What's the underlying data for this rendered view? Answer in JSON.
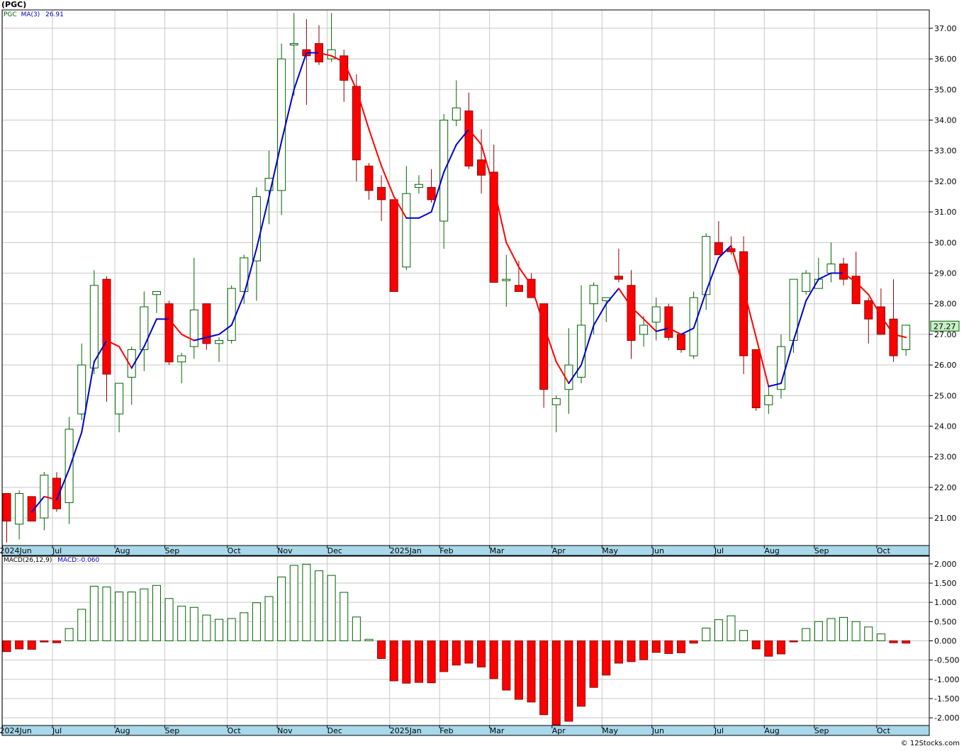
{
  "title": "(PGC)",
  "legend_price": {
    "ticker": "PGC",
    "ma_label": "MA(3)",
    "ma_value": "26.91"
  },
  "legend_macd": {
    "macd_label": "MACD(26,12,9)",
    "macd_value": "MACD:-0.060"
  },
  "last_price_tag": "27.27",
  "copyright": "© 12Stocks.com",
  "colors": {
    "up": "#006400",
    "down": "#ff0000",
    "ma_up": "#0000cc",
    "ma_down": "#ff0000",
    "grid": "#c8c8c8",
    "axis_band": "#a8d8ea",
    "tag_bg": "#c8f0c8"
  },
  "chart_data": [
    {
      "type": "candlestick",
      "name": "price",
      "y_ticks": [
        "21.00",
        "22.00",
        "23.00",
        "24.00",
        "25.00",
        "26.00",
        "27.00",
        "28.00",
        "29.00",
        "30.00",
        "31.00",
        "32.00",
        "33.00",
        "34.00",
        "35.00",
        "36.00",
        "37.00"
      ],
      "ylim": [
        20.1,
        37.6
      ],
      "x_labels": [
        {
          "label": "2024Jun",
          "i": 0
        },
        {
          "label": "Jul",
          "i": 4
        },
        {
          "label": "Aug",
          "i": 9
        },
        {
          "label": "Sep",
          "i": 13
        },
        {
          "label": "Oct",
          "i": 18
        },
        {
          "label": "Nov",
          "i": 22
        },
        {
          "label": "Dec",
          "i": 26
        },
        {
          "label": "2025Jan",
          "i": 31
        },
        {
          "label": "Feb",
          "i": 35
        },
        {
          "label": "Mar",
          "i": 39
        },
        {
          "label": "Apr",
          "i": 44
        },
        {
          "label": "May",
          "i": 48
        },
        {
          "label": "Jun",
          "i": 52
        },
        {
          "label": "Jul",
          "i": 57
        },
        {
          "label": "Aug",
          "i": 61
        },
        {
          "label": "Sep",
          "i": 65
        },
        {
          "label": "Oct",
          "i": 70
        }
      ],
      "candles": [
        [
          21.8,
          20.2,
          21.8,
          20.9
        ],
        [
          20.8,
          20.3,
          21.9,
          21.8
        ],
        [
          21.7,
          20.9,
          21.7,
          20.9
        ],
        [
          21.0,
          20.6,
          22.5,
          22.4
        ],
        [
          22.3,
          21.2,
          22.5,
          21.3
        ],
        [
          21.5,
          20.8,
          24.3,
          23.9
        ],
        [
          24.4,
          24.2,
          26.7,
          26.0
        ],
        [
          25.9,
          25.7,
          29.1,
          28.6
        ],
        [
          28.8,
          24.8,
          28.9,
          25.7
        ],
        [
          24.4,
          23.8,
          25.4,
          25.4
        ],
        [
          25.6,
          24.7,
          26.6,
          26.5
        ],
        [
          26.5,
          25.8,
          28.4,
          27.9
        ],
        [
          28.3,
          27.7,
          28.4,
          28.4
        ],
        [
          28.0,
          26.0,
          28.1,
          26.1
        ],
        [
          26.1,
          25.4,
          26.4,
          26.3
        ],
        [
          26.6,
          26.2,
          29.5,
          27.8
        ],
        [
          28.0,
          26.5,
          28.0,
          26.7
        ],
        [
          26.7,
          26.1,
          26.9,
          26.8
        ],
        [
          26.8,
          26.7,
          28.6,
          28.5
        ],
        [
          28.4,
          28.0,
          29.6,
          29.5
        ],
        [
          29.4,
          28.1,
          31.8,
          31.5
        ],
        [
          31.7,
          30.6,
          33.0,
          32.1
        ],
        [
          31.7,
          30.9,
          36.5,
          36.0
        ],
        [
          36.5,
          34.8,
          37.5,
          36.5
        ],
        [
          36.3,
          34.5,
          37.3,
          36.1
        ],
        [
          36.5,
          35.8,
          37.1,
          35.9
        ],
        [
          36.0,
          35.9,
          37.5,
          36.3
        ],
        [
          36.1,
          34.6,
          36.3,
          35.3
        ],
        [
          35.1,
          32.0,
          35.5,
          32.7
        ],
        [
          32.5,
          31.4,
          32.6,
          31.7
        ],
        [
          31.8,
          30.7,
          32.2,
          31.4
        ],
        [
          31.4,
          28.6,
          31.4,
          28.4
        ],
        [
          29.2,
          29.1,
          32.5,
          31.6
        ],
        [
          31.8,
          31.6,
          32.2,
          31.9
        ],
        [
          31.8,
          31.3,
          32.4,
          31.4
        ],
        [
          30.7,
          29.8,
          34.2,
          34.0
        ],
        [
          34.0,
          33.8,
          35.3,
          34.4
        ],
        [
          34.3,
          32.4,
          34.9,
          32.5
        ],
        [
          32.7,
          31.6,
          33.7,
          32.2
        ],
        [
          32.3,
          28.8,
          33.2,
          28.7
        ],
        [
          28.8,
          27.9,
          29.6,
          28.8
        ],
        [
          28.6,
          28.4,
          29.4,
          28.4
        ],
        [
          28.8,
          28.2,
          29.0,
          28.2
        ],
        [
          28.0,
          24.6,
          28.0,
          25.2
        ],
        [
          24.7,
          23.8,
          25.0,
          24.9
        ],
        [
          25.2,
          24.4,
          27.2,
          26.0
        ],
        [
          25.6,
          25.4,
          28.6,
          27.3
        ],
        [
          28.0,
          27.0,
          28.7,
          28.6
        ],
        [
          28.1,
          27.4,
          28.2,
          28.2
        ],
        [
          28.9,
          28.7,
          29.8,
          28.8
        ],
        [
          28.6,
          26.2,
          29.1,
          26.8
        ],
        [
          27.0,
          26.6,
          27.6,
          27.3
        ],
        [
          27.4,
          26.8,
          28.2,
          27.9
        ],
        [
          27.9,
          26.8,
          28.0,
          26.9
        ],
        [
          27.0,
          26.4,
          27.0,
          26.5
        ],
        [
          26.3,
          26.2,
          28.4,
          28.2
        ],
        [
          28.3,
          27.8,
          30.3,
          30.2
        ],
        [
          30.0,
          29.7,
          30.7,
          29.6
        ],
        [
          29.8,
          29.6,
          30.2,
          29.7
        ],
        [
          29.7,
          25.7,
          30.2,
          26.3
        ],
        [
          26.5,
          24.5,
          26.5,
          24.6
        ],
        [
          24.7,
          24.4,
          25.3,
          25.0
        ],
        [
          25.2,
          24.9,
          27.0,
          26.6
        ],
        [
          26.8,
          26.4,
          28.8,
          28.8
        ],
        [
          28.4,
          28.3,
          29.1,
          29.0
        ],
        [
          28.5,
          28.5,
          29.5,
          28.8
        ],
        [
          29.0,
          28.7,
          30.0,
          29.3
        ],
        [
          29.3,
          28.6,
          29.5,
          28.8
        ],
        [
          28.9,
          28.0,
          29.7,
          28.0
        ],
        [
          28.1,
          26.7,
          28.2,
          27.5
        ],
        [
          27.9,
          27.0,
          28.5,
          27.0
        ],
        [
          27.5,
          26.1,
          28.8,
          26.3
        ],
        [
          26.5,
          26.3,
          27.3,
          27.3
        ]
      ],
      "ma3": [
        null,
        null,
        21.2,
        21.7,
        21.6,
        22.6,
        23.8,
        26.1,
        26.8,
        26.6,
        25.9,
        26.6,
        27.5,
        27.5,
        27.0,
        26.8,
        26.9,
        27.0,
        27.3,
        28.3,
        29.8,
        31.5,
        33.3,
        35.0,
        36.2,
        36.2,
        36.1,
        35.9,
        35.0,
        33.7,
        32.5,
        31.5,
        30.8,
        30.8,
        31.0,
        32.3,
        33.2,
        33.7,
        33.2,
        31.8,
        30.0,
        29.2,
        28.6,
        27.3,
        26.1,
        25.4,
        26.0,
        27.3,
        28.0,
        28.5,
        27.9,
        27.5,
        27.1,
        27.2,
        27.0,
        27.2,
        28.4,
        29.5,
        29.9,
        28.5,
        26.9,
        25.3,
        25.4,
        26.8,
        28.1,
        28.8,
        29.0,
        29.0,
        28.7,
        28.3,
        27.6,
        27.0,
        26.9
      ]
    },
    {
      "type": "bar",
      "name": "MACD",
      "y_ticks": [
        "-2.000",
        "-1.500",
        "-1.000",
        "-0.500",
        "0.000",
        "0.500",
        "1.000",
        "1.500",
        "2.000"
      ],
      "ylim": [
        -2.2,
        2.2
      ],
      "values": [
        -0.28,
        -0.21,
        -0.22,
        -0.03,
        -0.05,
        0.32,
        0.82,
        1.42,
        1.4,
        1.27,
        1.27,
        1.35,
        1.44,
        1.1,
        0.9,
        0.87,
        0.67,
        0.56,
        0.58,
        0.73,
        0.99,
        1.15,
        1.66,
        1.96,
        1.99,
        1.82,
        1.7,
        1.26,
        0.62,
        0.04,
        -0.46,
        -1.04,
        -1.1,
        -1.08,
        -1.09,
        -0.8,
        -0.63,
        -0.58,
        -0.68,
        -0.98,
        -1.28,
        -1.52,
        -1.59,
        -1.92,
        -2.18,
        -2.09,
        -1.7,
        -1.21,
        -0.89,
        -0.58,
        -0.54,
        -0.49,
        -0.3,
        -0.33,
        -0.31,
        -0.06,
        0.33,
        0.55,
        0.65,
        0.27,
        -0.21,
        -0.4,
        -0.34,
        -0.02,
        0.32,
        0.5,
        0.58,
        0.61,
        0.5,
        0.36,
        0.18,
        -0.05,
        -0.06
      ]
    }
  ]
}
